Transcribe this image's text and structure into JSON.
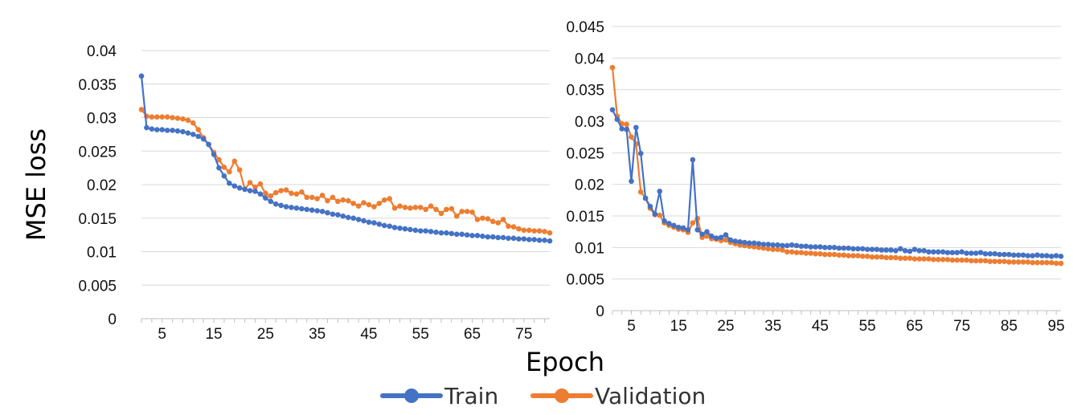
{
  "figure": {
    "ylabel": "MSE loss",
    "xlabel": "Epoch",
    "legend": {
      "placement": "bottom-center",
      "items": [
        {
          "name": "Train",
          "color": "#4472C4"
        },
        {
          "name": "Validation",
          "color": "#ED7D31"
        }
      ]
    }
  },
  "chart_data": [
    {
      "type": "line",
      "grid": "horizontal",
      "xlim": [
        1,
        80
      ],
      "ylim": [
        0,
        0.04
      ],
      "yticks": [
        "0",
        "0.005",
        "0.01",
        "0.015",
        "0.02",
        "0.025",
        "0.03",
        "0.035",
        "0.04"
      ],
      "xticks": [
        "5",
        "15",
        "25",
        "35",
        "45",
        "55",
        "65",
        "75"
      ],
      "series": [
        {
          "name": "Train",
          "color": "#4472C4",
          "x_start": 1,
          "values": [
            0.0362,
            0.0285,
            0.0283,
            0.0282,
            0.0282,
            0.0281,
            0.0281,
            0.028,
            0.0279,
            0.0277,
            0.0275,
            0.0272,
            0.0268,
            0.026,
            0.0245,
            0.0225,
            0.0213,
            0.0202,
            0.0198,
            0.0195,
            0.0193,
            0.0191,
            0.019,
            0.0186,
            0.018,
            0.0175,
            0.0171,
            0.0169,
            0.0167,
            0.0166,
            0.0165,
            0.0164,
            0.0163,
            0.0162,
            0.0161,
            0.016,
            0.0158,
            0.0156,
            0.0155,
            0.0153,
            0.0151,
            0.015,
            0.0148,
            0.0146,
            0.0144,
            0.0143,
            0.0141,
            0.0139,
            0.0138,
            0.0136,
            0.0135,
            0.0134,
            0.0133,
            0.0132,
            0.0131,
            0.0131,
            0.013,
            0.0129,
            0.0128,
            0.0128,
            0.0127,
            0.0126,
            0.0126,
            0.0125,
            0.0124,
            0.0124,
            0.0123,
            0.0122,
            0.0122,
            0.0121,
            0.0121,
            0.012,
            0.012,
            0.0119,
            0.0119,
            0.0118,
            0.0118,
            0.0117,
            0.0117,
            0.0116
          ]
        },
        {
          "name": "Validation",
          "color": "#ED7D31",
          "x_start": 1,
          "values": [
            0.0312,
            0.0302,
            0.0301,
            0.0301,
            0.0301,
            0.0301,
            0.03,
            0.0299,
            0.0298,
            0.0296,
            0.0292,
            0.0282,
            0.027,
            0.026,
            0.0248,
            0.0237,
            0.0226,
            0.0219,
            0.0235,
            0.0222,
            0.0193,
            0.0203,
            0.0196,
            0.0201,
            0.0187,
            0.0183,
            0.0188,
            0.0191,
            0.0192,
            0.0187,
            0.0186,
            0.0189,
            0.0181,
            0.0181,
            0.0179,
            0.0184,
            0.0176,
            0.0181,
            0.0175,
            0.0177,
            0.0176,
            0.0172,
            0.0168,
            0.0173,
            0.017,
            0.0167,
            0.0172,
            0.0177,
            0.0179,
            0.0165,
            0.0168,
            0.0166,
            0.0165,
            0.0166,
            0.0166,
            0.0163,
            0.0168,
            0.0163,
            0.0157,
            0.0163,
            0.0164,
            0.0153,
            0.016,
            0.016,
            0.0159,
            0.0148,
            0.015,
            0.0149,
            0.0145,
            0.0143,
            0.0148,
            0.0138,
            0.0137,
            0.0134,
            0.0132,
            0.0132,
            0.0131,
            0.0131,
            0.013,
            0.0128
          ]
        }
      ]
    },
    {
      "type": "line",
      "grid": "horizontal",
      "xlim": [
        1,
        96
      ],
      "ylim": [
        0,
        0.045
      ],
      "yticks": [
        "0",
        "0.005",
        "0.01",
        "0.015",
        "0.02",
        "0.025",
        "0.03",
        "0.035",
        "0.04",
        "0.045"
      ],
      "xticks": [
        "5",
        "15",
        "25",
        "35",
        "45",
        "55",
        "65",
        "75",
        "85",
        "95"
      ],
      "series": [
        {
          "name": "Train",
          "color": "#4472C4",
          "x_start": 1,
          "values": [
            0.0318,
            0.0303,
            0.0288,
            0.0287,
            0.0205,
            0.029,
            0.0249,
            0.0178,
            0.0165,
            0.0153,
            0.0189,
            0.0142,
            0.0138,
            0.0135,
            0.0132,
            0.0131,
            0.0128,
            0.0239,
            0.0128,
            0.0121,
            0.0125,
            0.0118,
            0.0115,
            0.0116,
            0.012,
            0.0112,
            0.011,
            0.0109,
            0.0108,
            0.0107,
            0.0107,
            0.0106,
            0.0105,
            0.0105,
            0.0104,
            0.0104,
            0.0103,
            0.0103,
            0.0104,
            0.0103,
            0.0102,
            0.0102,
            0.0101,
            0.0101,
            0.0101,
            0.01,
            0.01,
            0.01,
            0.0099,
            0.0099,
            0.0099,
            0.0098,
            0.0098,
            0.0098,
            0.0097,
            0.0097,
            0.0097,
            0.0096,
            0.0096,
            0.0096,
            0.0095,
            0.0098,
            0.0095,
            0.0094,
            0.0097,
            0.0095,
            0.0095,
            0.0093,
            0.0093,
            0.0093,
            0.0093,
            0.0092,
            0.0092,
            0.0092,
            0.0093,
            0.0091,
            0.0091,
            0.0091,
            0.0092,
            0.009,
            0.009,
            0.009,
            0.0089,
            0.0089,
            0.0089,
            0.0088,
            0.0088,
            0.0088,
            0.0087,
            0.0087,
            0.0088,
            0.0087,
            0.0087,
            0.0086,
            0.0087,
            0.0086
          ]
        },
        {
          "name": "Validation",
          "color": "#ED7D31",
          "x_start": 1,
          "values": [
            0.0385,
            0.0308,
            0.0296,
            0.0295,
            0.0275,
            0.0264,
            0.0188,
            0.0178,
            0.0162,
            0.0152,
            0.0151,
            0.0139,
            0.0135,
            0.0132,
            0.0129,
            0.0128,
            0.0124,
            0.0139,
            0.0146,
            0.0116,
            0.0118,
            0.0114,
            0.0113,
            0.0111,
            0.0112,
            0.0108,
            0.0106,
            0.0104,
            0.0103,
            0.0102,
            0.0101,
            0.01,
            0.0099,
            0.0098,
            0.0097,
            0.0097,
            0.0096,
            0.0093,
            0.0093,
            0.0092,
            0.0092,
            0.0091,
            0.0091,
            0.009,
            0.009,
            0.0089,
            0.0089,
            0.0089,
            0.0088,
            0.0088,
            0.0087,
            0.0087,
            0.0087,
            0.0086,
            0.0086,
            0.0085,
            0.0085,
            0.0085,
            0.0084,
            0.0084,
            0.0084,
            0.0083,
            0.0083,
            0.0083,
            0.0082,
            0.0082,
            0.0082,
            0.0082,
            0.0081,
            0.0081,
            0.0081,
            0.0081,
            0.008,
            0.008,
            0.008,
            0.008,
            0.0079,
            0.0079,
            0.0079,
            0.0079,
            0.0078,
            0.0078,
            0.0078,
            0.0078,
            0.0077,
            0.0077,
            0.0077,
            0.0077,
            0.0077,
            0.0076,
            0.0076,
            0.0076,
            0.0076,
            0.0076,
            0.0075,
            0.0075
          ]
        }
      ]
    }
  ]
}
